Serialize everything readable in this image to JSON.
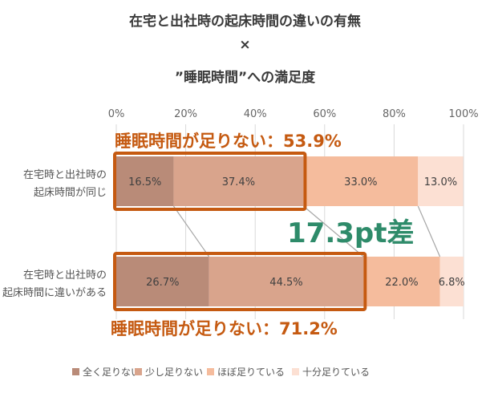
{
  "title_lines": [
    "在宅と出社時の起床時間の違いの有無",
    "×",
    "”睡眠時間”への満足度"
  ],
  "chart_data": {
    "type": "bar",
    "stacked": true,
    "orientation": "horizontal",
    "percent": true,
    "categories": [
      [
        "在宅時と出社時の",
        "起床時間が同じ"
      ],
      [
        "在宅時と出社時の",
        "起床時間に違いがある"
      ]
    ],
    "series": [
      {
        "name": "全く足りない",
        "values": [
          16.5,
          26.7
        ],
        "color": "#b98b78"
      },
      {
        "name": "少し足りない",
        "values": [
          37.4,
          44.5
        ],
        "color": "#d9a48c"
      },
      {
        "name": "ほぼ足りている",
        "values": [
          33.0,
          22.0
        ],
        "color": "#f5bc9d"
      },
      {
        "name": "十分足りている",
        "values": [
          13.0,
          6.8
        ],
        "color": "#fce0d3"
      }
    ],
    "data_labels": [
      [
        "16.5%",
        "37.4%",
        "33.0%",
        "13.0%"
      ],
      [
        "26.7%",
        "44.5%",
        "22.0%",
        "6.8%"
      ]
    ],
    "x_ticks": [
      "0%",
      "20%",
      "40%",
      "60%",
      "80%",
      "100%"
    ],
    "xlim": [
      0,
      100
    ],
    "grid": true,
    "legend_position": "bottom",
    "annotations": {
      "top_callout": "睡眠時間が足りない：53.9%",
      "bottom_callout": "睡眠時間が足りない：71.2%",
      "difference": "17.3pt差"
    },
    "accent_colors": {
      "callout": "#c55a11",
      "difference": "#2e8b6a"
    }
  }
}
